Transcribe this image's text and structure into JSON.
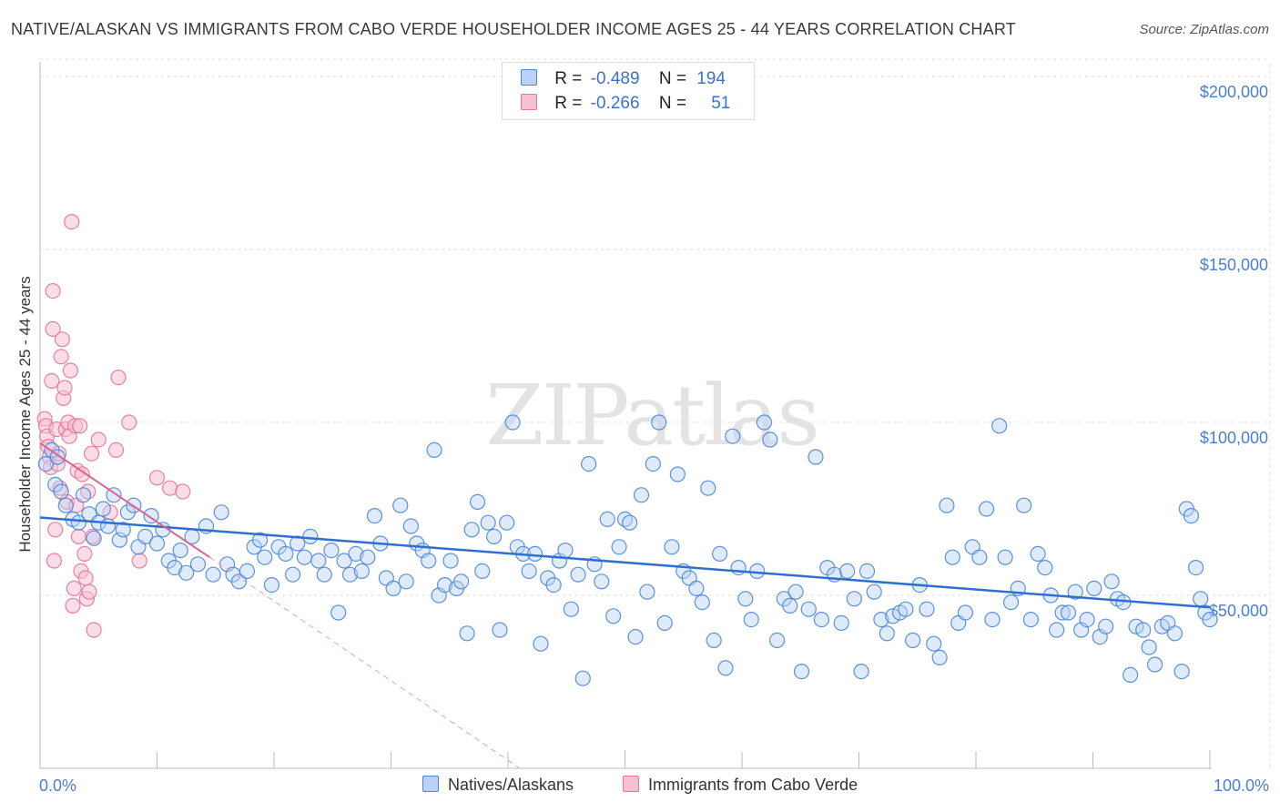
{
  "title": "NATIVE/ALASKAN VS IMMIGRANTS FROM CABO VERDE HOUSEHOLDER INCOME AGES 25 - 44 YEARS CORRELATION CHART",
  "source": "Source: ZipAtlas.com",
  "watermark": "ZIPatlas",
  "colors": {
    "blue": "#4a86d8",
    "blue_fill": "#b9d2f5",
    "pink": "#e8729c",
    "pink_fill": "#f7c1d4",
    "axis_text": "#4a7fd0"
  },
  "legend": {
    "rows": [
      {
        "r_label": "R =",
        "r_value": "-0.489",
        "n_label": "N =",
        "n_value": "194"
      },
      {
        "r_label": "R =",
        "r_value": "-0.266",
        "n_label": "N =",
        "n_value": "51"
      }
    ]
  },
  "bottom_legend": {
    "series1": "Natives/Alaskans",
    "series2": "Immigrants from Cabo Verde"
  },
  "chart_data": {
    "type": "scatter",
    "title": "NATIVE/ALASKAN VS IMMIGRANTS FROM CABO VERDE HOUSEHOLDER INCOME AGES 25 - 44 YEARS CORRELATION CHART",
    "xlabel": "",
    "ylabel": "Householder Income Ages 25 - 44 years",
    "xlim": [
      0,
      100
    ],
    "ylim": [
      0,
      205000
    ],
    "x_tick_labels": {
      "min": "0.0%",
      "max": "100.0%"
    },
    "y_ticks": [
      {
        "value": 50000,
        "label": "$50,000"
      },
      {
        "value": 100000,
        "label": "$100,000"
      },
      {
        "value": 150000,
        "label": "$150,000"
      },
      {
        "value": 200000,
        "label": "$200,000"
      }
    ],
    "series": [
      {
        "name": "Natives/Alaskans",
        "r": -0.489,
        "n": 194,
        "trend": {
          "x": [
            0,
            100
          ],
          "y": [
            72500,
            46500
          ]
        },
        "points": [
          [
            0.5,
            88000
          ],
          [
            1.0,
            92000
          ],
          [
            1.3,
            82000
          ],
          [
            1.5,
            90000
          ],
          [
            1.8,
            80000
          ],
          [
            2.2,
            76000
          ],
          [
            2.8,
            72000
          ],
          [
            3.3,
            71000
          ],
          [
            3.7,
            79000
          ],
          [
            4.2,
            73500
          ],
          [
            4.6,
            66500
          ],
          [
            5.0,
            71000
          ],
          [
            5.4,
            75000
          ],
          [
            5.8,
            70000
          ],
          [
            6.3,
            79000
          ],
          [
            6.8,
            66000
          ],
          [
            7.1,
            69000
          ],
          [
            7.5,
            74000
          ],
          [
            8.0,
            76000
          ],
          [
            8.4,
            64000
          ],
          [
            9.0,
            67000
          ],
          [
            9.5,
            73000
          ],
          [
            10.0,
            65000
          ],
          [
            10.5,
            69000
          ],
          [
            11.0,
            60000
          ],
          [
            11.5,
            58000
          ],
          [
            12.0,
            63000
          ],
          [
            12.5,
            56500
          ],
          [
            13.0,
            67000
          ],
          [
            13.5,
            59000
          ],
          [
            14.2,
            70000
          ],
          [
            14.8,
            56000
          ],
          [
            15.5,
            74000
          ],
          [
            16.0,
            59000
          ],
          [
            16.5,
            56000
          ],
          [
            17.0,
            54000
          ],
          [
            17.7,
            57000
          ],
          [
            18.3,
            64000
          ],
          [
            18.8,
            66000
          ],
          [
            19.2,
            61000
          ],
          [
            19.8,
            53000
          ],
          [
            20.4,
            64000
          ],
          [
            21.0,
            62000
          ],
          [
            21.6,
            56000
          ],
          [
            22.0,
            65000
          ],
          [
            22.6,
            61000
          ],
          [
            23.1,
            67000
          ],
          [
            23.8,
            60000
          ],
          [
            24.3,
            56000
          ],
          [
            24.9,
            63000
          ],
          [
            25.5,
            45000
          ],
          [
            26.0,
            60000
          ],
          [
            26.5,
            56000
          ],
          [
            27.0,
            62000
          ],
          [
            27.5,
            57000
          ],
          [
            28.0,
            61000
          ],
          [
            28.6,
            73000
          ],
          [
            29.1,
            65000
          ],
          [
            29.6,
            55000
          ],
          [
            30.2,
            52000
          ],
          [
            30.8,
            76000
          ],
          [
            31.3,
            54000
          ],
          [
            31.7,
            70000
          ],
          [
            32.2,
            65000
          ],
          [
            32.7,
            63000
          ],
          [
            33.2,
            60000
          ],
          [
            33.7,
            92000
          ],
          [
            34.1,
            50000
          ],
          [
            34.6,
            53000
          ],
          [
            35.1,
            60000
          ],
          [
            35.6,
            52000
          ],
          [
            36.0,
            54000
          ],
          [
            36.5,
            39000
          ],
          [
            36.9,
            69000
          ],
          [
            37.4,
            77000
          ],
          [
            37.8,
            57000
          ],
          [
            38.3,
            71000
          ],
          [
            38.8,
            67000
          ],
          [
            39.3,
            40000
          ],
          [
            39.9,
            71000
          ],
          [
            40.4,
            100000
          ],
          [
            40.8,
            64000
          ],
          [
            41.3,
            62000
          ],
          [
            41.8,
            57000
          ],
          [
            42.3,
            62000
          ],
          [
            42.8,
            36000
          ],
          [
            43.4,
            55000
          ],
          [
            43.9,
            53000
          ],
          [
            44.4,
            60000
          ],
          [
            44.9,
            63000
          ],
          [
            45.4,
            46000
          ],
          [
            46.0,
            56000
          ],
          [
            46.4,
            26000
          ],
          [
            46.9,
            88000
          ],
          [
            47.4,
            59000
          ],
          [
            48.0,
            54000
          ],
          [
            48.5,
            72000
          ],
          [
            49.0,
            44000
          ],
          [
            49.5,
            64000
          ],
          [
            50.0,
            72000
          ],
          [
            50.4,
            71000
          ],
          [
            50.9,
            38000
          ],
          [
            51.4,
            79000
          ],
          [
            51.9,
            51000
          ],
          [
            52.4,
            88000
          ],
          [
            52.9,
            100000
          ],
          [
            53.4,
            42000
          ],
          [
            54.0,
            64000
          ],
          [
            54.5,
            85000
          ],
          [
            55.0,
            57000
          ],
          [
            55.5,
            55000
          ],
          [
            56.1,
            52000
          ],
          [
            56.6,
            48000
          ],
          [
            57.1,
            81000
          ],
          [
            57.6,
            37000
          ],
          [
            58.1,
            62000
          ],
          [
            58.6,
            29000
          ],
          [
            59.2,
            96000
          ],
          [
            59.7,
            58000
          ],
          [
            60.3,
            49000
          ],
          [
            60.8,
            43000
          ],
          [
            61.3,
            57000
          ],
          [
            61.9,
            100000
          ],
          [
            62.4,
            95000
          ],
          [
            63.0,
            37000
          ],
          [
            63.6,
            49000
          ],
          [
            64.1,
            47000
          ],
          [
            64.6,
            51000
          ],
          [
            65.1,
            28000
          ],
          [
            65.7,
            46000
          ],
          [
            66.3,
            90000
          ],
          [
            66.8,
            43000
          ],
          [
            67.3,
            58000
          ],
          [
            67.9,
            56000
          ],
          [
            68.5,
            42000
          ],
          [
            69.0,
            57000
          ],
          [
            69.6,
            49000
          ],
          [
            70.2,
            28000
          ],
          [
            70.7,
            57000
          ],
          [
            71.3,
            51000
          ],
          [
            71.9,
            43000
          ],
          [
            72.4,
            39000
          ],
          [
            72.9,
            44000
          ],
          [
            73.5,
            45000
          ],
          [
            74.0,
            46000
          ],
          [
            74.6,
            37000
          ],
          [
            75.2,
            53000
          ],
          [
            75.8,
            46000
          ],
          [
            76.4,
            36000
          ],
          [
            76.9,
            32000
          ],
          [
            77.5,
            76000
          ],
          [
            78.0,
            61000
          ],
          [
            78.5,
            42000
          ],
          [
            79.1,
            45000
          ],
          [
            79.7,
            64000
          ],
          [
            80.3,
            61000
          ],
          [
            80.9,
            75000
          ],
          [
            81.4,
            43000
          ],
          [
            82.0,
            99000
          ],
          [
            82.5,
            61000
          ],
          [
            83.0,
            48000
          ],
          [
            83.6,
            52000
          ],
          [
            84.1,
            76000
          ],
          [
            84.7,
            43000
          ],
          [
            85.3,
            62000
          ],
          [
            85.9,
            58000
          ],
          [
            86.4,
            50000
          ],
          [
            86.9,
            40000
          ],
          [
            87.4,
            45000
          ],
          [
            87.9,
            45000
          ],
          [
            88.5,
            51000
          ],
          [
            89.0,
            40000
          ],
          [
            89.5,
            43000
          ],
          [
            90.1,
            52000
          ],
          [
            90.6,
            38000
          ],
          [
            91.1,
            41000
          ],
          [
            91.6,
            54000
          ],
          [
            92.1,
            49000
          ],
          [
            92.6,
            48000
          ],
          [
            93.2,
            27000
          ],
          [
            93.7,
            41000
          ],
          [
            94.3,
            40000
          ],
          [
            94.8,
            35000
          ],
          [
            95.3,
            30000
          ],
          [
            95.9,
            41000
          ],
          [
            96.4,
            42000
          ],
          [
            97.0,
            39000
          ],
          [
            97.6,
            28000
          ],
          [
            98.0,
            75000
          ],
          [
            98.4,
            73000
          ],
          [
            98.8,
            58000
          ],
          [
            99.2,
            49000
          ],
          [
            99.6,
            45000
          ],
          [
            100.0,
            43000
          ]
        ]
      },
      {
        "name": "Immigrants from Cabo Verde",
        "r": -0.266,
        "n": 51,
        "trend": {
          "x": [
            0,
            14.5
          ],
          "y": [
            94000,
            61000
          ]
        },
        "trend_extension": {
          "x": [
            14.5,
            41
          ],
          "y": [
            61000,
            0
          ]
        },
        "points": [
          [
            0.4,
            101000
          ],
          [
            0.5,
            99000
          ],
          [
            0.6,
            96000
          ],
          [
            0.7,
            93000
          ],
          [
            0.8,
            90000
          ],
          [
            0.9,
            87000
          ],
          [
            1.0,
            112000
          ],
          [
            1.1,
            127000
          ],
          [
            1.1,
            138000
          ],
          [
            1.2,
            60000
          ],
          [
            1.3,
            69000
          ],
          [
            1.4,
            98000
          ],
          [
            1.5,
            88000
          ],
          [
            1.6,
            91000
          ],
          [
            1.7,
            81000
          ],
          [
            1.8,
            119000
          ],
          [
            1.9,
            124000
          ],
          [
            2.0,
            107000
          ],
          [
            2.1,
            110000
          ],
          [
            2.2,
            98000
          ],
          [
            2.3,
            77000
          ],
          [
            2.4,
            100000
          ],
          [
            2.5,
            96000
          ],
          [
            2.6,
            115000
          ],
          [
            2.7,
            158000
          ],
          [
            2.8,
            47000
          ],
          [
            2.9,
            52000
          ],
          [
            3.0,
            99000
          ],
          [
            3.1,
            76000
          ],
          [
            3.2,
            86000
          ],
          [
            3.3,
            67000
          ],
          [
            3.4,
            99000
          ],
          [
            3.5,
            57000
          ],
          [
            3.6,
            85000
          ],
          [
            3.8,
            62000
          ],
          [
            3.9,
            55000
          ],
          [
            4.0,
            49000
          ],
          [
            4.1,
            80000
          ],
          [
            4.2,
            51000
          ],
          [
            4.4,
            91000
          ],
          [
            4.5,
            67000
          ],
          [
            4.6,
            40000
          ],
          [
            5.0,
            95000
          ],
          [
            6.0,
            74000
          ],
          [
            6.5,
            92000
          ],
          [
            6.7,
            113000
          ],
          [
            7.6,
            100000
          ],
          [
            8.5,
            60000
          ],
          [
            10.0,
            84000
          ],
          [
            11.1,
            81000
          ],
          [
            12.2,
            80000
          ]
        ]
      }
    ]
  }
}
